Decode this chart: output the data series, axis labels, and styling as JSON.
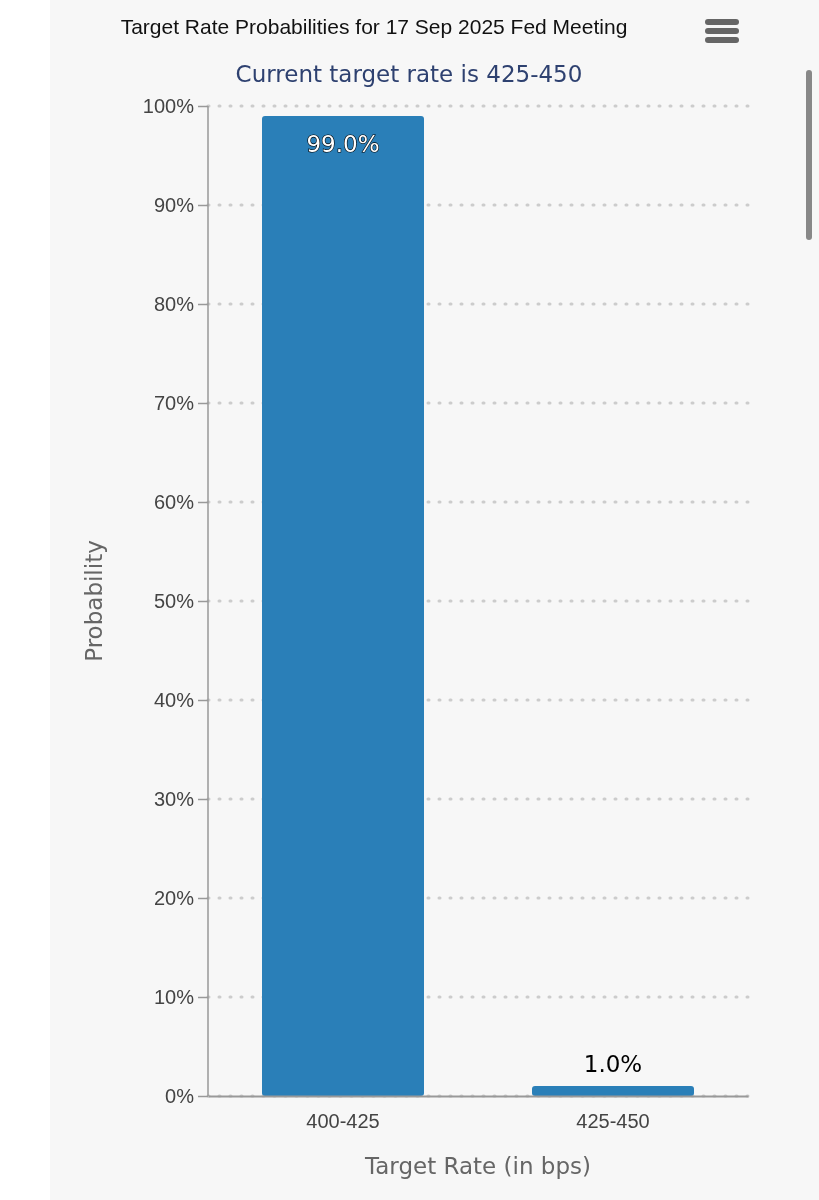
{
  "chart_data": {
    "type": "bar",
    "title": "Target Rate Probabilities for 17 Sep 2025 Fed Meeting",
    "subtitle": "Current target rate is 425-450",
    "xlabel": "Target Rate (in bps)",
    "ylabel": "Probability",
    "categories": [
      "400-425",
      "425-450"
    ],
    "values": [
      99.0,
      1.0
    ],
    "value_labels": [
      "99.0%",
      "1.0%"
    ],
    "color": "#2a7fb8",
    "ylim": [
      0,
      100
    ],
    "yticks": [
      {
        "value": 0,
        "label": "0%"
      },
      {
        "value": 10,
        "label": "10%"
      },
      {
        "value": 20,
        "label": "20%"
      },
      {
        "value": 30,
        "label": "30%"
      },
      {
        "value": 40,
        "label": "40%"
      },
      {
        "value": 50,
        "label": "50%"
      },
      {
        "value": 60,
        "label": "60%"
      },
      {
        "value": 70,
        "label": "70%"
      },
      {
        "value": 80,
        "label": "80%"
      },
      {
        "value": 90,
        "label": "90%"
      },
      {
        "value": 100,
        "label": "100%"
      }
    ],
    "grid": "y"
  }
}
